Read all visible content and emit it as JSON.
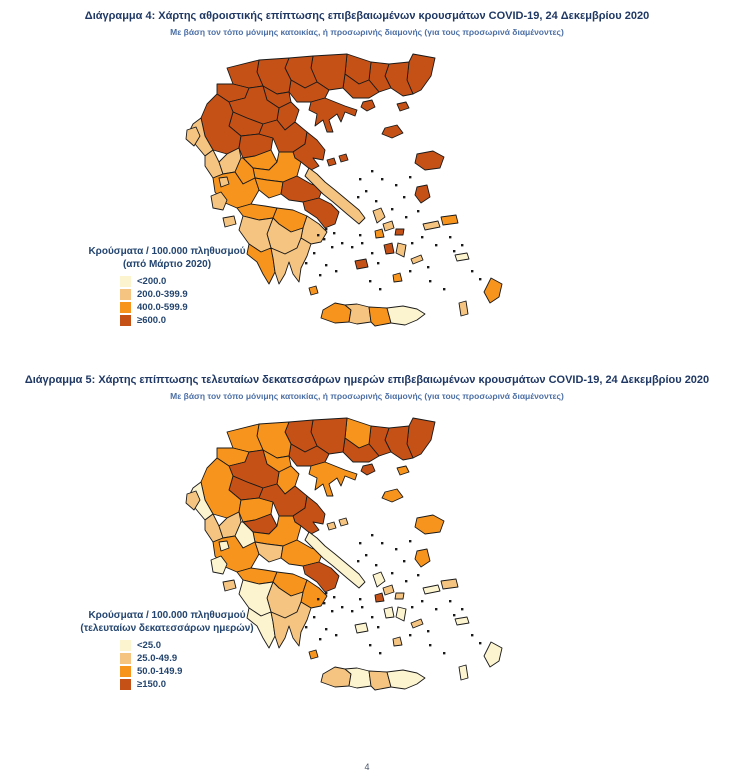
{
  "page": {
    "number": "4"
  },
  "palette": {
    "1": "#FCF3CF",
    "2": "#F5C480",
    "3": "#F7941E",
    "4": "#C55117",
    "border": "#1A1A1A"
  },
  "maps": [
    {
      "title": "Διάγραμμα 4: Χάρτης αθροιστικής επίπτωσης επιβεβαιωμένων κρουσμάτων COVID-19, 24 Δεκεμβρίου 2020",
      "subtitle": "Με βάση τον τόπο μόνιμης κατοικίας, ή προσωρινής διαμονής (για τους προσωρινά διαμένοντες)",
      "legend_title_line1": "Κρούσματα / 100.000 πληθυσμού",
      "legend_title_line2": "(από Μάρτιο 2020)",
      "legend_items": [
        {
          "label": "<200.0",
          "cat": "1"
        },
        {
          "label": "200.0-399.9",
          "cat": "2"
        },
        {
          "label": "400.0-599.9",
          "cat": "3"
        },
        {
          "label": "≥600.0",
          "cat": "4"
        }
      ],
      "regions": {
        "evros": 4,
        "rhodopi": 4,
        "xanthi": 4,
        "drama": 4,
        "kavala": 4,
        "thasos": 4,
        "samothraki": 4,
        "serres": 4,
        "kilkis": 4,
        "thessaloniki": 4,
        "chalkidiki": 4,
        "pella": 4,
        "imathia": 4,
        "pieria": 4,
        "florina": 4,
        "kastoria": 4,
        "kozani": 4,
        "grevena": 4,
        "ioannina": 4,
        "thesprotia": 2,
        "preveza": 2,
        "arta": 2,
        "trikala": 4,
        "larissa": 4,
        "karditsa": 3,
        "magnesia": 4,
        "sporades1": 4,
        "sporades2": 4,
        "fthiotida": 3,
        "evrytania": 3,
        "aitoloakarnania": 3,
        "fokida": 3,
        "viotia": 4,
        "attica": 4,
        "evia": 2,
        "achaia": 3,
        "korinthia": 3,
        "argolida": 2,
        "arcadia": 2,
        "ilia": 2,
        "messinia": 3,
        "lakonia": 2,
        "kythira": 3,
        "corfu": 2,
        "lefkada": 2,
        "kefalonia": 2,
        "zakynthos": 2,
        "limnos": 4,
        "lesvos": 4,
        "chios": 4,
        "samos": 3,
        "ikaria": 2,
        "andros": 2,
        "tinos": 2,
        "mykonos": 4,
        "syros": 3,
        "paros": 4,
        "naxos": 2,
        "milos": 4,
        "santorini": 3,
        "amorgos": 2,
        "kos": 1,
        "rhodes": 3,
        "karpathos": 2,
        "chania": 3,
        "rethymno": 2,
        "heraklio": 3,
        "lasithi": 1
      }
    },
    {
      "title": "Διάγραμμα 5: Χάρτης επίπτωσης τελευταίων δεκατεσσάρων ημερών επιβεβαιωμένων κρουσμάτων COVID-19, 24 Δεκεμβρίου 2020",
      "subtitle": "Με βάση τον τόπο μόνιμης κατοικίας, ή προσωρινής διαμονής (για τους προσωρινά διαμένοντες)",
      "legend_title_line1": "Κρούσματα / 100.000 πληθυσμού",
      "legend_title_line2": "(τελευταίων δεκατεσσάρων ημερών)",
      "legend_items": [
        {
          "label": "<25.0",
          "cat": "1"
        },
        {
          "label": "25.0-49.9",
          "cat": "2"
        },
        {
          "label": "50.0-149.9",
          "cat": "3"
        },
        {
          "label": "≥150.0",
          "cat": "4"
        }
      ],
      "regions": {
        "evros": 4,
        "rhodopi": 4,
        "xanthi": 4,
        "drama": 3,
        "kavala": 4,
        "thasos": 4,
        "samothraki": 3,
        "serres": 4,
        "kilkis": 4,
        "thessaloniki": 4,
        "chalkidiki": 3,
        "pella": 3,
        "imathia": 3,
        "pieria": 3,
        "florina": 3,
        "kastoria": 3,
        "kozani": 4,
        "grevena": 4,
        "ioannina": 3,
        "thesprotia": 1,
        "preveza": 2,
        "arta": 2,
        "trikala": 3,
        "larissa": 4,
        "karditsa": 4,
        "magnesia": 4,
        "sporades1": 2,
        "sporades2": 2,
        "fthiotida": 3,
        "evrytania": 1,
        "aitoloakarnania": 3,
        "fokida": 2,
        "viotia": 3,
        "attica": 4,
        "evia": 1,
        "achaia": 3,
        "korinthia": 3,
        "argolida": 3,
        "arcadia": 2,
        "ilia": 1,
        "messinia": 1,
        "lakonia": 2,
        "kythira": 3,
        "corfu": 2,
        "lefkada": 1,
        "kefalonia": 1,
        "zakynthos": 2,
        "limnos": 3,
        "lesvos": 3,
        "chios": 3,
        "samos": 2,
        "ikaria": 1,
        "andros": 1,
        "tinos": 2,
        "mykonos": 2,
        "syros": 4,
        "paros": 1,
        "naxos": 1,
        "milos": 1,
        "santorini": 2,
        "amorgos": 2,
        "kos": 1,
        "rhodes": 1,
        "karpathos": 1,
        "chania": 2,
        "rethymno": 1,
        "heraklio": 2,
        "lasithi": 1
      }
    }
  ]
}
